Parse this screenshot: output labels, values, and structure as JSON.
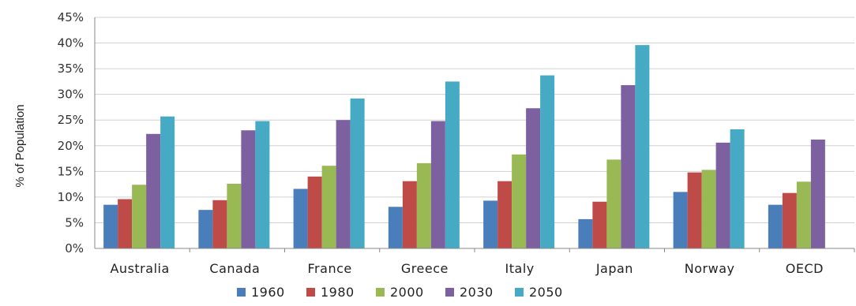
{
  "chart_data": {
    "type": "bar",
    "ylabel": "% of Population",
    "ylim": [
      0,
      45
    ],
    "yticks": [
      "0%",
      "5%",
      "10%",
      "15%",
      "20%",
      "25%",
      "30%",
      "35%",
      "40%",
      "45%"
    ],
    "ytick_values": [
      0,
      5,
      10,
      15,
      20,
      25,
      30,
      35,
      40,
      45
    ],
    "grid": true,
    "legend_position": "bottom",
    "categories": [
      "Australia",
      "Canada",
      "France",
      "Greece",
      "Italy",
      "Japan",
      "Norway",
      "OECD"
    ],
    "series": [
      {
        "name": "1960",
        "color": "#4a7ebb",
        "values": [
          8.5,
          7.5,
          11.6,
          8.1,
          9.3,
          5.7,
          11.0,
          8.5
        ]
      },
      {
        "name": "1980",
        "color": "#be4b48",
        "values": [
          9.6,
          9.4,
          14.0,
          13.1,
          13.1,
          9.1,
          14.8,
          10.8
        ]
      },
      {
        "name": "2000",
        "color": "#98b954",
        "values": [
          12.4,
          12.6,
          16.1,
          16.6,
          18.3,
          17.3,
          15.3,
          13.0
        ]
      },
      {
        "name": "2030",
        "color": "#7d60a0",
        "values": [
          22.3,
          23.0,
          25.0,
          24.8,
          27.3,
          31.8,
          20.6,
          21.2
        ]
      },
      {
        "name": "2050",
        "color": "#46aac5",
        "values": [
          25.7,
          24.8,
          29.2,
          32.5,
          33.7,
          39.6,
          23.2,
          null
        ]
      }
    ]
  }
}
